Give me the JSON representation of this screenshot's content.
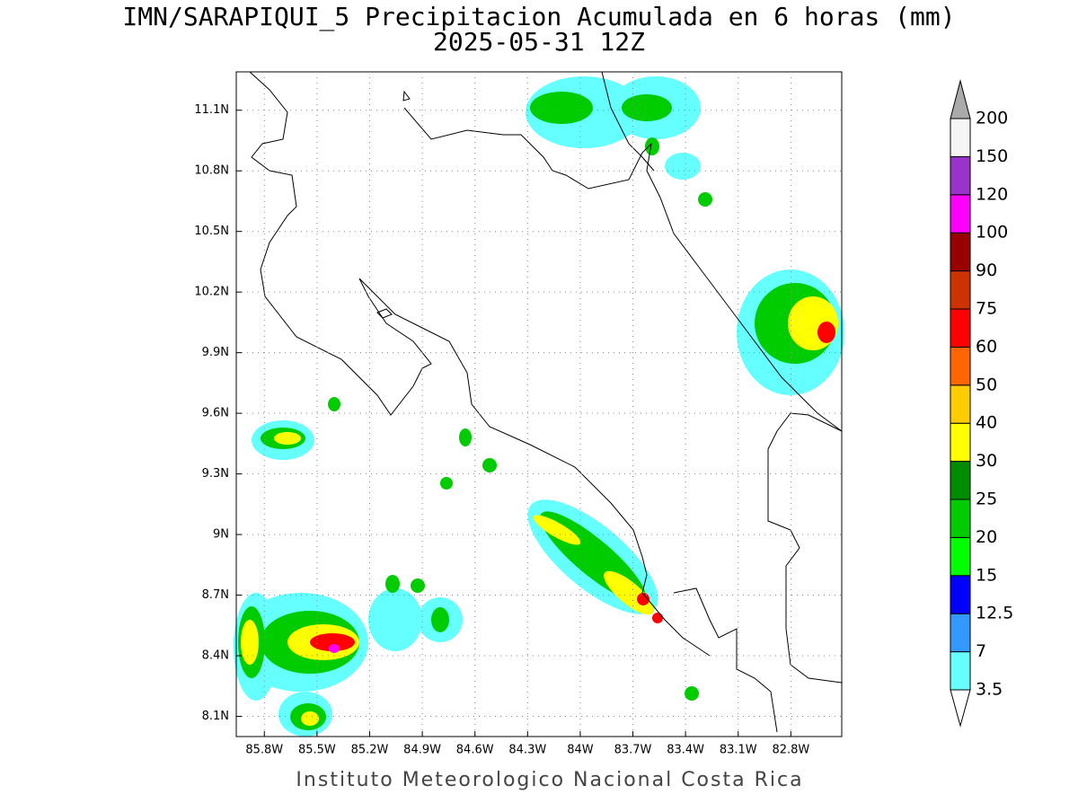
{
  "chart_data": {
    "type": "map",
    "title": "IMN/SARAPIQUI_5 Precipitacion Acumulada en 6 horas (mm)",
    "subtitle": "2025-05-31 12Z",
    "footer": "Instituto Meteorologico Nacional Costa Rica",
    "xlim": [
      -85.96,
      -82.51
    ],
    "ylim": [
      8.0,
      11.29
    ],
    "xticks": [
      {
        "value": -85.8,
        "label": "85.8W"
      },
      {
        "value": -85.5,
        "label": "85.5W"
      },
      {
        "value": -85.2,
        "label": "85.2W"
      },
      {
        "value": -84.9,
        "label": "84.9W"
      },
      {
        "value": -84.6,
        "label": "84.6W"
      },
      {
        "value": -84.3,
        "label": "84.3W"
      },
      {
        "value": -84.0,
        "label": "84W"
      },
      {
        "value": -83.7,
        "label": "83.7W"
      },
      {
        "value": -83.4,
        "label": "83.4W"
      },
      {
        "value": -83.1,
        "label": "83.1W"
      },
      {
        "value": -82.8,
        "label": "82.8W"
      }
    ],
    "yticks": [
      {
        "value": 8.1,
        "label": "8.1N"
      },
      {
        "value": 8.4,
        "label": "8.4N"
      },
      {
        "value": 8.7,
        "label": "8.7N"
      },
      {
        "value": 9.0,
        "label": "9N"
      },
      {
        "value": 9.3,
        "label": "9.3N"
      },
      {
        "value": 9.6,
        "label": "9.6N"
      },
      {
        "value": 9.9,
        "label": "9.9N"
      },
      {
        "value": 10.2,
        "label": "10.2N"
      },
      {
        "value": 10.5,
        "label": "10.5N"
      },
      {
        "value": 10.8,
        "label": "10.8N"
      },
      {
        "value": 11.1,
        "label": "11.1N"
      }
    ],
    "grid": true,
    "colorbar": {
      "levels": [
        3.5,
        7,
        12.5,
        15,
        20,
        25,
        30,
        40,
        50,
        60,
        75,
        90,
        100,
        120,
        150,
        200
      ],
      "colors": [
        "#66ffff",
        "#3399ff",
        "#0000ff",
        "#00ff00",
        "#00cc00",
        "#008c00",
        "#ffff00",
        "#ffcc00",
        "#ff6600",
        "#ff0000",
        "#cc3300",
        "#990000",
        "#ff00ff",
        "#9933cc",
        "#f5f5f5"
      ],
      "under_color": "#ffffff",
      "over_color": "#aaaaaa"
    }
  }
}
